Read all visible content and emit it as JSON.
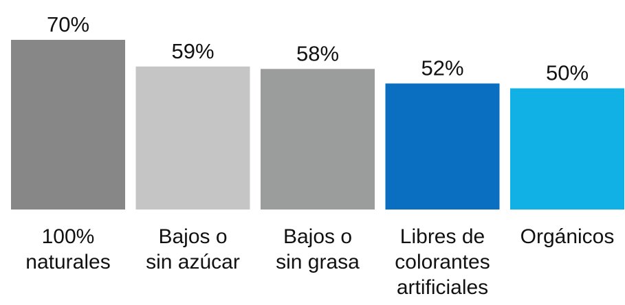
{
  "chart_data": {
    "type": "bar",
    "categories": [
      [
        "100%",
        "naturales"
      ],
      [
        "Bajos o",
        "sin azúcar"
      ],
      [
        "Bajos o",
        "sin grasa"
      ],
      [
        "Libres de",
        "colorantes",
        "artificiales"
      ],
      [
        "Orgánicos"
      ]
    ],
    "values": [
      70,
      59,
      58,
      52,
      50
    ],
    "value_labels": [
      "70%",
      "59%",
      "58%",
      "52%",
      "50%"
    ],
    "colors": [
      "#878787",
      "#c5c5c5",
      "#9b9d9d",
      "#0a6fc0",
      "#11b1e6"
    ],
    "ylim": [
      0,
      70
    ],
    "grid": false,
    "legend": "none"
  }
}
